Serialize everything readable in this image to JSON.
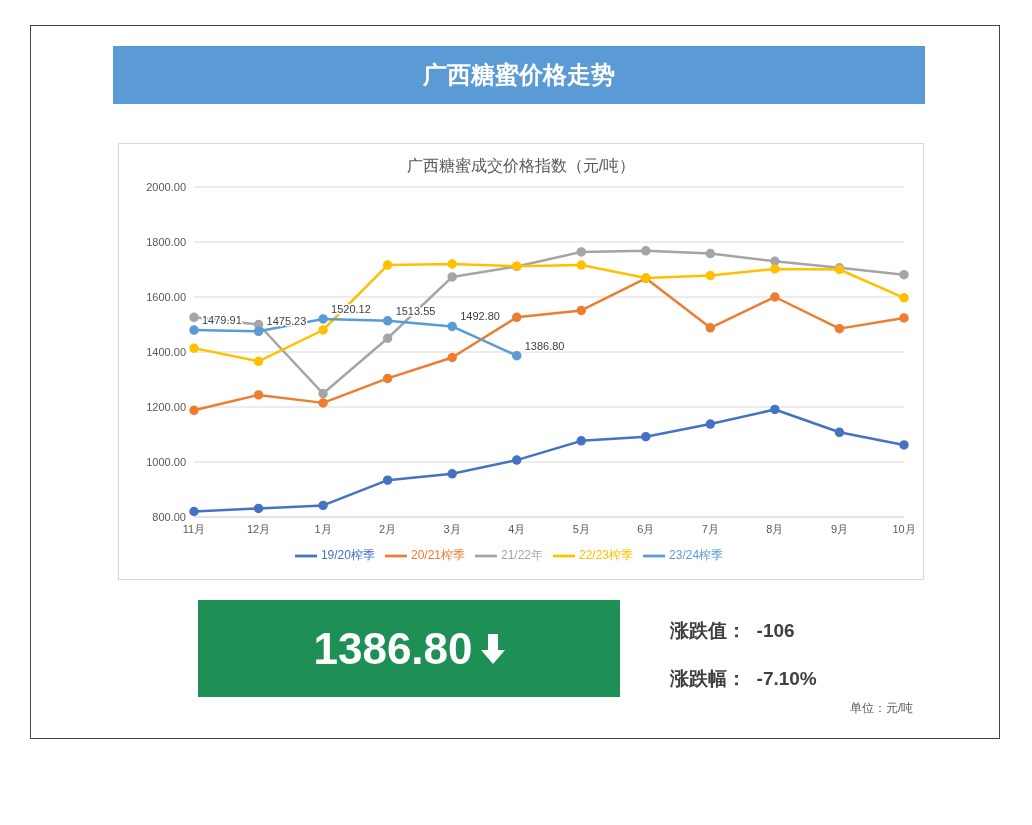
{
  "chart_data": {
    "type": "line",
    "title": "广西糖蜜价格走势",
    "subtitle": "广西糖蜜成交价格指数（元/吨）",
    "categories": [
      "11月",
      "12月",
      "1月",
      "2月",
      "3月",
      "4月",
      "5月",
      "6月",
      "7月",
      "8月",
      "9月",
      "10月"
    ],
    "series": [
      {
        "name": "19/20榨季",
        "color": "#4472c4",
        "values": [
          820,
          831,
          842,
          934,
          957,
          1007,
          1077,
          1092,
          1138,
          1191,
          1108,
          1062
        ]
      },
      {
        "name": "20/21榨季",
        "color": "#ed7d31",
        "values": [
          1188,
          1244,
          1215,
          1304,
          1380,
          1526,
          1551,
          1668,
          1488,
          1600,
          1485,
          1524
        ]
      },
      {
        "name": "21/22年",
        "color": "#a5a5a5",
        "values": [
          1526,
          1500,
          1249,
          1450,
          1673,
          1711,
          1764,
          1768,
          1758,
          1730,
          1706,
          1681
        ]
      },
      {
        "name": "22/23榨季",
        "color": "#ffc000",
        "values": [
          1414,
          1366,
          1480,
          1716,
          1720,
          1712,
          1716,
          1669,
          1678,
          1702,
          1700,
          1597
        ]
      },
      {
        "name": "23/24榨季",
        "color": "#5b9bd5",
        "values": [
          1479.91,
          1475.23,
          1520.12,
          1513.55,
          1492.8,
          1386.8,
          null,
          null,
          null,
          null,
          null,
          null
        ],
        "value_labels": [
          "1479.91",
          "1475.23",
          "1520.12",
          "1513.55",
          "1492.80",
          "1386.80",
          null,
          null,
          null,
          null,
          null,
          null
        ]
      }
    ],
    "ylim": [
      800,
      2000
    ],
    "yticks": [
      {
        "value": 800,
        "label": "800.00"
      },
      {
        "value": 1000,
        "label": "1000.00"
      },
      {
        "value": 1200,
        "label": "1200.00"
      },
      {
        "value": 1400,
        "label": "1400.00"
      },
      {
        "value": 1600,
        "label": "1600.00"
      },
      {
        "value": 1800,
        "label": "1800.00"
      },
      {
        "value": 2000,
        "label": "2000.00"
      }
    ],
    "grid": "y",
    "legend": "bottom",
    "marker": "circle",
    "line_style": "solid",
    "annotations": [
      "1386.80",
      "涨跌值：  -106",
      "涨跌幅：  -7.10%",
      "单位：元/吨"
    ]
  }
}
